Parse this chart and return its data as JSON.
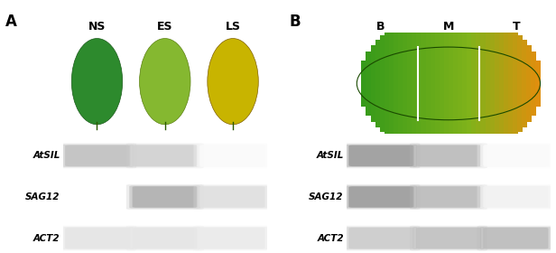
{
  "panel_A_label": "A",
  "panel_B_label": "B",
  "panel_A_col_labels": [
    "NS",
    "ES",
    "LS"
  ],
  "panel_B_col_labels": [
    "B",
    "M",
    "T"
  ],
  "gene_labels": [
    "AtSIL",
    "SAG12",
    "ACT2"
  ],
  "gene_labels_italic": true,
  "background": "#ffffff",
  "gel_bg": "#000000",
  "band_color_bright": "#ffffff",
  "band_color_dim": "#888888",
  "band_color_medium": "#bbbbbb",
  "leaf_A_colors": [
    {
      "base": "#2d8a2d",
      "highlight": "#4ab84a"
    },
    {
      "base": "#7ab830",
      "highlight": "#a0d040"
    },
    {
      "base": "#c8b400",
      "highlight": "#e0cc20"
    }
  ],
  "leaf_B_colors": {
    "base_green": "#3a9a3a",
    "highlight_green": "#5ab85a",
    "tip_yellow": "#d4c030",
    "tip_edge": "#b09000"
  },
  "divider_line_color": "#ffffff",
  "figsize": [
    6.16,
    2.8
  ],
  "dpi": 100
}
